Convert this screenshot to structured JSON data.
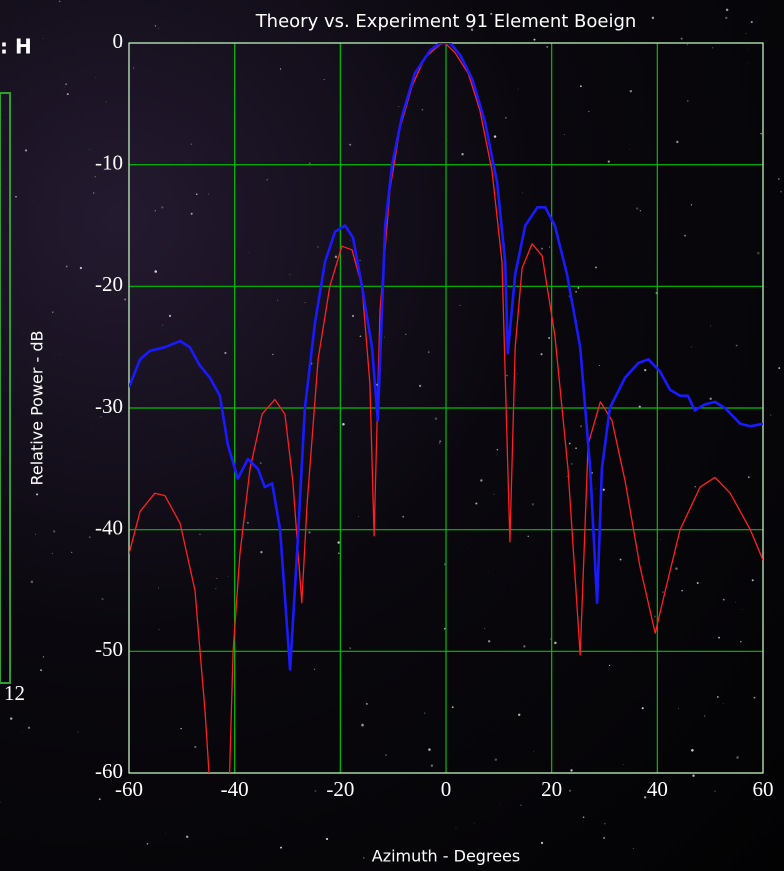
{
  "chart_data": {
    "type": "line",
    "title": "Theory vs. Experiment 91 Element Boeign",
    "ylabel": "Relative Power - dB",
    "xlabel": "Azimuth - Degrees",
    "xlim": [
      -60,
      60
    ],
    "xticks": [
      -60,
      -40,
      -20,
      0,
      20,
      40,
      60
    ],
    "ylim": [
      -60,
      0
    ],
    "yticks": [
      0,
      -10,
      -20,
      -30,
      -40,
      -50,
      -60
    ],
    "grid": true,
    "grid_color": "#00c000",
    "series": [
      {
        "color": "#ff2020",
        "x": [
          -60,
          -57.9,
          -55.1,
          -53.2,
          -50.3,
          -47.5,
          -45.6,
          -44.7,
          -41.1,
          -40.3,
          -39,
          -37.1,
          -34.8,
          -32.4,
          -30.5,
          -29,
          -27.3,
          -26.3,
          -24.2,
          -22,
          -19.7,
          -17.8,
          -15.9,
          -14.4,
          -13.6,
          -12.5,
          -10.6,
          -8.7,
          -6.4,
          -4,
          -1.1,
          -0.2,
          1.7,
          4.2,
          6.4,
          8.7,
          10.6,
          12.1,
          13.1,
          14.4,
          16.3,
          18.2,
          20.6,
          23.1,
          25.4,
          26.9,
          29.2,
          31.4,
          33.9,
          36.7,
          39.6,
          41.5,
          44.3,
          48.1,
          50.9,
          53.8,
          57.6,
          60
        ],
        "values": [
          -42,
          -38.5,
          -37,
          -37.2,
          -39.5,
          -45,
          -55,
          -61,
          -62,
          -50,
          -42,
          -35,
          -30.5,
          -29.3,
          -30.5,
          -36,
          -46,
          -38,
          -26,
          -20,
          -16.7,
          -17,
          -20,
          -28,
          -40.5,
          -22,
          -12,
          -7,
          -3.5,
          -1.2,
          -0.1,
          0,
          -0.8,
          -2.5,
          -5.5,
          -10.5,
          -18,
          -41,
          -25,
          -18.5,
          -16.5,
          -17.5,
          -24,
          -35,
          -50.3,
          -33,
          -29.5,
          -31,
          -36,
          -43,
          -48.5,
          -45,
          -40,
          -36.5,
          -35.7,
          -37,
          -40,
          -42.5
        ]
      },
      {
        "color": "#1a1aff",
        "x": [
          -60,
          -57.9,
          -56,
          -53.2,
          -50.3,
          -48.5,
          -46.6,
          -44.7,
          -42.8,
          -41.3,
          -39.4,
          -37.5,
          -35.6,
          -34.3,
          -32.9,
          -31.4,
          -29.5,
          -28.2,
          -26.7,
          -24.8,
          -22.9,
          -21,
          -19.1,
          -17.6,
          -15.9,
          -14,
          -12.9,
          -11.5,
          -10.2,
          -8.3,
          -5.9,
          -3,
          -1.1,
          0.8,
          2.7,
          5,
          7.4,
          9.7,
          11.2,
          11.7,
          13.1,
          15,
          17.3,
          18.8,
          20.6,
          22.9,
          25.4,
          27.3,
          28.6,
          29.5,
          31,
          33.9,
          36.4,
          38.3,
          40.5,
          42.4,
          44.3,
          45.8,
          47.1,
          49,
          50.9,
          52.8,
          55.7,
          57.6,
          60
        ],
        "values": [
          -28.3,
          -26,
          -25.3,
          -25,
          -24.5,
          -25,
          -26.5,
          -27.5,
          -29,
          -33,
          -35.8,
          -34.2,
          -35,
          -36.5,
          -36.2,
          -40,
          -51.5,
          -42,
          -30,
          -23,
          -18,
          -15.5,
          -15,
          -16,
          -20,
          -25,
          -31,
          -15,
          -10,
          -6,
          -2.5,
          -0.6,
          0,
          0,
          -1,
          -3,
          -6.5,
          -11.5,
          -18,
          -25.5,
          -19,
          -15,
          -13.5,
          -13.5,
          -15,
          -19,
          -25,
          -35,
          -46,
          -35,
          -30,
          -27.5,
          -26.3,
          -26,
          -27,
          -28.5,
          -29,
          -29,
          -30.2,
          -29.7,
          -29.5,
          -30,
          -31.3,
          -31.5,
          -31.3
        ]
      }
    ]
  },
  "fragments": [
    ": H",
    "12"
  ]
}
